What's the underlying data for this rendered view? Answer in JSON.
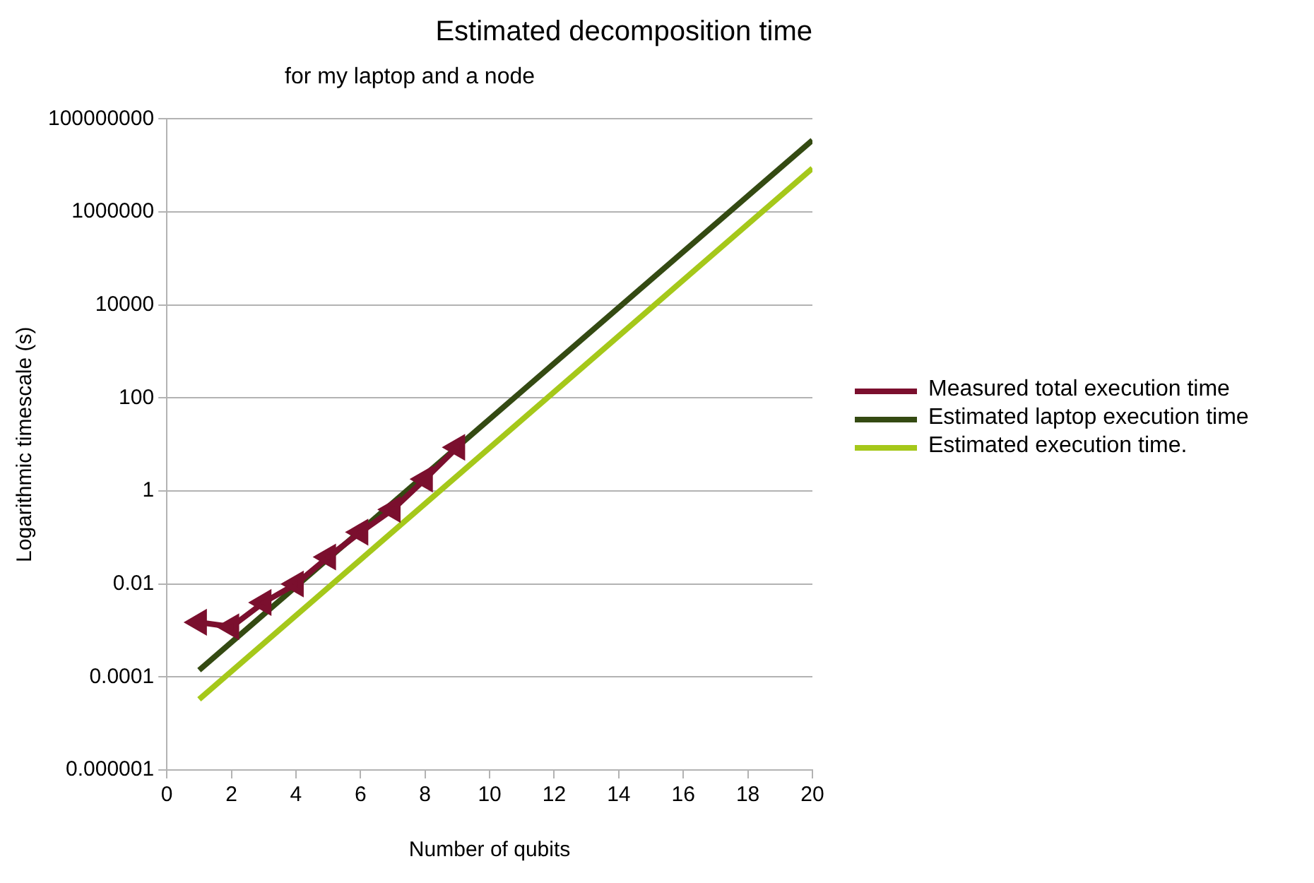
{
  "chart_data": {
    "type": "line",
    "title": "Estimated decomposition time",
    "subtitle": "for my laptop and a node",
    "xlabel": "Number of qubits",
    "ylabel": "Logarithmic timescale (s)",
    "series": [
      {
        "name": "Measured total execution time",
        "color": "#7b0f2e",
        "marker": "triangle",
        "x": [
          1,
          2,
          3,
          4,
          5,
          6,
          7,
          8,
          9
        ],
        "values": [
          0.0015,
          0.0012,
          0.004,
          0.01,
          0.038,
          0.13,
          0.4,
          1.8,
          8.7
        ]
      },
      {
        "name": "Estimated laptop execution time",
        "color": "#344a12",
        "marker": "none",
        "x": [
          1,
          20
        ],
        "values": [
          0.00014,
          35000000
        ]
      },
      {
        "name": "Estimated execution time.",
        "color": "#a5c81a",
        "marker": "none",
        "x": [
          1,
          20
        ],
        "values": [
          3.3e-05,
          8700000
        ]
      }
    ],
    "xlim": [
      0,
      20
    ],
    "xticks": [
      0,
      2,
      4,
      6,
      8,
      10,
      12,
      14,
      16,
      18,
      20
    ],
    "ylim": [
      1e-06,
      100000000
    ],
    "yticks": [
      {
        "value": 1e-06,
        "label": "0.000001"
      },
      0.0001,
      0.01,
      1,
      100,
      10000,
      1000000,
      100000000
    ],
    "log": "y",
    "grid": "y",
    "legend": "right"
  }
}
